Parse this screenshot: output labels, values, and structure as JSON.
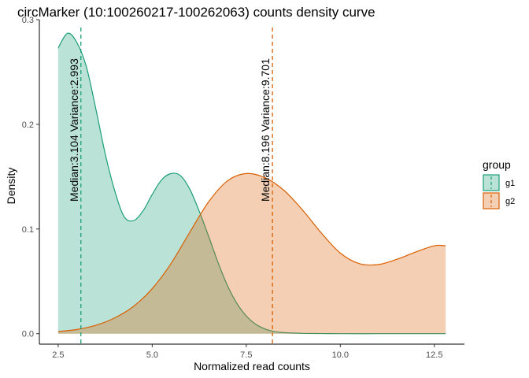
{
  "chart_data": {
    "type": "area",
    "title": "circMarker (10:100260217-100262063) counts density curve",
    "xlabel": "Normalized read counts",
    "ylabel": "Density",
    "xlim": [
      2.0,
      13.3
    ],
    "ylim": [
      -0.01,
      0.3
    ],
    "x_ticks": [
      2.5,
      5.0,
      7.5,
      10.0,
      12.5
    ],
    "x_tick_labels": [
      "2.5",
      "5.0",
      "7.5",
      "10.0",
      "12.5"
    ],
    "y_ticks": [
      0.0,
      0.1,
      0.2,
      0.3
    ],
    "y_tick_labels": [
      "0.0",
      "0.1",
      "0.2",
      "0.3"
    ],
    "grid": false,
    "legend": {
      "title": "group",
      "position": "right",
      "entries": [
        "g1",
        "g2"
      ]
    },
    "series": [
      {
        "name": "g1",
        "line_color": "#1B9E77",
        "fill_color": "#1B9E77",
        "fill_opacity": 0.3,
        "x": [
          2.5,
          2.75,
          3.0,
          3.25,
          3.5,
          3.75,
          4.0,
          4.25,
          4.5,
          4.75,
          5.0,
          5.25,
          5.5,
          5.75,
          6.0,
          6.25,
          6.5,
          6.75,
          7.0,
          7.25,
          7.5,
          7.75,
          8.0,
          8.25,
          8.5,
          9.0,
          9.5,
          10.0,
          11.0,
          12.0,
          12.8
        ],
        "y": [
          0.273,
          0.287,
          0.278,
          0.255,
          0.215,
          0.172,
          0.137,
          0.112,
          0.108,
          0.117,
          0.133,
          0.147,
          0.153,
          0.151,
          0.138,
          0.117,
          0.093,
          0.068,
          0.046,
          0.029,
          0.017,
          0.009,
          0.0045,
          0.002,
          0.001,
          0.0003,
          0.0001,
          0.0,
          0.0,
          0.0,
          0.0
        ]
      },
      {
        "name": "g2",
        "line_color": "#D95F02",
        "fill_color": "#D95F02",
        "fill_opacity": 0.3,
        "x": [
          2.5,
          3.0,
          3.5,
          4.0,
          4.5,
          5.0,
          5.5,
          6.0,
          6.5,
          7.0,
          7.5,
          8.0,
          8.5,
          9.0,
          9.5,
          10.0,
          10.5,
          11.0,
          11.5,
          12.0,
          12.5,
          12.8
        ],
        "y": [
          0.002,
          0.004,
          0.008,
          0.015,
          0.026,
          0.043,
          0.067,
          0.097,
          0.126,
          0.146,
          0.153,
          0.149,
          0.137,
          0.118,
          0.096,
          0.077,
          0.067,
          0.066,
          0.071,
          0.078,
          0.084,
          0.084
        ]
      }
    ],
    "annotations": [
      {
        "series": "g1",
        "median": 3.104,
        "text": "Median:3.104 Variance:2.993",
        "color": "#1B9E77"
      },
      {
        "series": "g2",
        "median": 8.196,
        "text": "Median:8.196 Variance:9.701",
        "color": "#D95F02"
      }
    ]
  }
}
